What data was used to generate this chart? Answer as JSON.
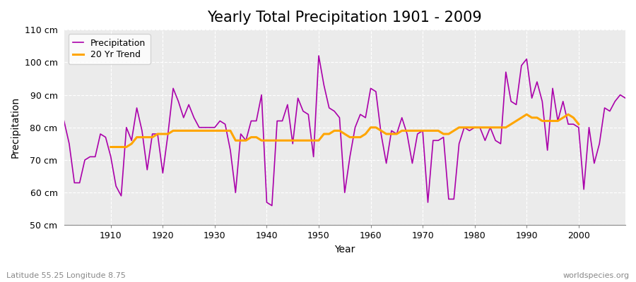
{
  "title": "Yearly Total Precipitation 1901 - 2009",
  "xlabel": "Year",
  "ylabel": "Precipitation",
  "subtitle_left": "Latitude 55.25 Longitude 8.75",
  "subtitle_right": "worldspecies.org",
  "years": [
    1901,
    1902,
    1903,
    1904,
    1905,
    1906,
    1907,
    1908,
    1909,
    1910,
    1911,
    1912,
    1913,
    1914,
    1915,
    1916,
    1917,
    1918,
    1919,
    1920,
    1921,
    1922,
    1923,
    1924,
    1925,
    1926,
    1927,
    1928,
    1929,
    1930,
    1931,
    1932,
    1933,
    1934,
    1935,
    1936,
    1937,
    1938,
    1939,
    1940,
    1941,
    1942,
    1943,
    1944,
    1945,
    1946,
    1947,
    1948,
    1949,
    1950,
    1951,
    1952,
    1953,
    1954,
    1955,
    1956,
    1957,
    1958,
    1959,
    1960,
    1961,
    1962,
    1963,
    1964,
    1965,
    1966,
    1967,
    1968,
    1969,
    1970,
    1971,
    1972,
    1973,
    1974,
    1975,
    1976,
    1977,
    1978,
    1979,
    1980,
    1981,
    1982,
    1983,
    1984,
    1985,
    1986,
    1987,
    1988,
    1989,
    1990,
    1991,
    1992,
    1993,
    1994,
    1995,
    1996,
    1997,
    1998,
    1999,
    2000,
    2001,
    2002,
    2003,
    2004,
    2005,
    2006,
    2007,
    2008,
    2009
  ],
  "precipitation": [
    82,
    75,
    63,
    63,
    70,
    71,
    71,
    78,
    77,
    71,
    62,
    59,
    80,
    76,
    86,
    79,
    67,
    78,
    78,
    66,
    78,
    92,
    88,
    83,
    87,
    83,
    80,
    80,
    80,
    80,
    82,
    81,
    73,
    60,
    78,
    76,
    82,
    82,
    90,
    57,
    56,
    82,
    82,
    87,
    75,
    89,
    85,
    84,
    71,
    102,
    93,
    86,
    85,
    83,
    60,
    71,
    80,
    84,
    83,
    92,
    91,
    78,
    69,
    79,
    78,
    83,
    78,
    69,
    78,
    79,
    57,
    76,
    76,
    77,
    58,
    58,
    75,
    80,
    79,
    80,
    80,
    76,
    80,
    76,
    75,
    97,
    88,
    87,
    99,
    101,
    89,
    94,
    88,
    73,
    92,
    82,
    88,
    81,
    81,
    80,
    61,
    80,
    69,
    75,
    86,
    85,
    88,
    90,
    89
  ],
  "trend_years": [
    1910,
    1911,
    1912,
    1913,
    1914,
    1915,
    1916,
    1917,
    1918,
    1919,
    1920,
    1921,
    1922,
    1923,
    1924,
    1925,
    1926,
    1927,
    1928,
    1929,
    1930,
    1931,
    1932,
    1933,
    1934,
    1935,
    1936,
    1937,
    1938,
    1939,
    1940,
    1941,
    1942,
    1943,
    1944,
    1945,
    1946,
    1947,
    1948,
    1949,
    1950,
    1951,
    1952,
    1953,
    1954,
    1955,
    1956,
    1957,
    1958,
    1959,
    1960,
    1961,
    1962,
    1963,
    1964,
    1965,
    1966,
    1967,
    1968,
    1969,
    1970,
    1971,
    1972,
    1973,
    1974,
    1975,
    1976,
    1977,
    1978,
    1979,
    1980,
    1981,
    1982,
    1983,
    1984,
    1985,
    1986,
    1987,
    1988,
    1989,
    1990,
    1991,
    1992,
    1993,
    1994,
    1995,
    1996,
    1997,
    1998,
    1999,
    2000
  ],
  "trend": [
    74,
    74,
    74,
    74,
    75,
    77,
    77,
    77,
    77,
    78,
    78,
    78,
    79,
    79,
    79,
    79,
    79,
    79,
    79,
    79,
    79,
    79,
    79,
    79,
    76,
    76,
    76,
    77,
    77,
    76,
    76,
    76,
    76,
    76,
    76,
    76,
    76,
    76,
    76,
    76,
    76,
    78,
    78,
    79,
    79,
    78,
    77,
    77,
    77,
    78,
    80,
    80,
    79,
    78,
    78,
    78,
    79,
    79,
    79,
    79,
    79,
    79,
    79,
    79,
    78,
    78,
    79,
    80,
    80,
    80,
    80,
    80,
    80,
    80,
    80,
    80,
    80,
    81,
    82,
    83,
    84,
    83,
    83,
    82,
    82,
    82,
    82,
    83,
    84,
    83,
    81
  ],
  "precip_color": "#aa00aa",
  "trend_color": "#FFA500",
  "fig_bg_color": "#ffffff",
  "plot_bg_color": "#ebebeb",
  "grid_color": "#ffffff",
  "ylim": [
    50,
    110
  ],
  "yticks": [
    50,
    60,
    70,
    80,
    90,
    100,
    110
  ],
  "ytick_labels": [
    "50 cm",
    "60 cm",
    "70 cm",
    "80 cm",
    "90 cm",
    "100 cm",
    "110 cm"
  ],
  "xticks": [
    1910,
    1920,
    1930,
    1940,
    1950,
    1960,
    1970,
    1980,
    1990,
    2000
  ],
  "xlim": [
    1901,
    2009
  ],
  "title_fontsize": 15,
  "axis_label_fontsize": 10,
  "tick_fontsize": 9,
  "legend_fontsize": 9,
  "precip_linewidth": 1.2,
  "trend_linewidth": 2.2
}
